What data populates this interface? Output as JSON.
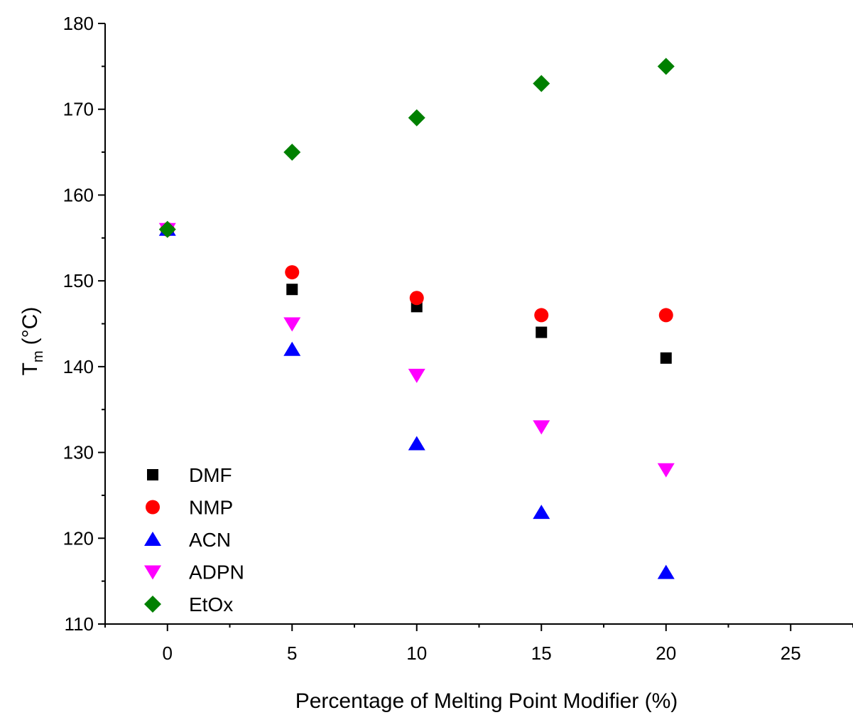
{
  "chart_data": {
    "type": "scatter",
    "xlabel": "Percentage of Melting Point Modifier (%)",
    "ylabel_main": "T",
    "ylabel_sub": "m",
    "ylabel_unit": "(°C)",
    "xlim": [
      -2.5,
      27.5
    ],
    "ylim": [
      110,
      180
    ],
    "xticks": [
      0,
      5,
      10,
      15,
      20,
      25
    ],
    "yticks": [
      110,
      120,
      130,
      140,
      150,
      160,
      170,
      180
    ],
    "legend_position": "bottom-left",
    "series": [
      {
        "name": "DMF",
        "marker": "square",
        "color": "#000000",
        "x": [
          0,
          5,
          10,
          15,
          20
        ],
        "y": [
          156,
          149,
          147,
          144,
          141
        ]
      },
      {
        "name": "NMP",
        "marker": "circle",
        "color": "#ff0000",
        "x": [
          0,
          5,
          10,
          15,
          20
        ],
        "y": [
          156,
          151,
          148,
          146,
          146
        ]
      },
      {
        "name": "ACN",
        "marker": "triangle-up",
        "color": "#0000ff",
        "x": [
          0,
          5,
          10,
          15,
          20
        ],
        "y": [
          156,
          142,
          131,
          123,
          116
        ]
      },
      {
        "name": "ADPN",
        "marker": "triangle-down",
        "color": "#ff00ff",
        "x": [
          0,
          5,
          10,
          15,
          20
        ],
        "y": [
          156,
          145,
          139,
          133,
          128
        ]
      },
      {
        "name": "EtOx",
        "marker": "diamond",
        "color": "#008000",
        "x": [
          0,
          5,
          10,
          15,
          20
        ],
        "y": [
          156,
          165,
          169,
          173,
          175
        ]
      }
    ]
  }
}
